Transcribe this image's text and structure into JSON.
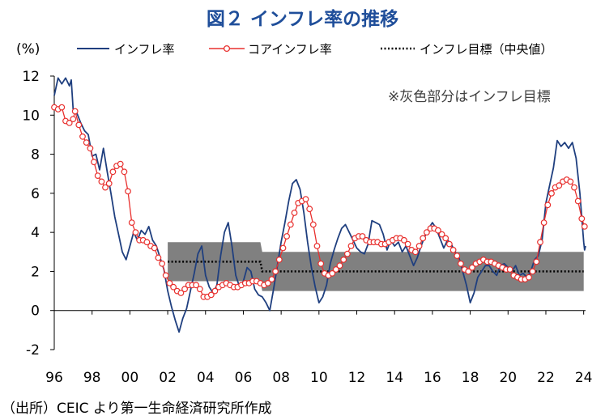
{
  "title": "図２ インフレ率の推移",
  "source": "（出所）CEIC より第一生命経済研究所作成",
  "note": "※灰色部分はインフレ目標",
  "colors": {
    "headline": "#1f3f7f",
    "core": "#e8302e",
    "target": "#000000",
    "band": "#808080",
    "title": "#1f4e9a"
  },
  "chart_data": {
    "type": "line",
    "ylabel": "(%)",
    "ylim": [
      -2,
      12
    ],
    "yticks": [
      -2,
      0,
      2,
      4,
      6,
      8,
      10,
      12
    ],
    "xlim": [
      1996.0,
      2024.1
    ],
    "xticks": [
      1996,
      1998,
      2000,
      2002,
      2004,
      2006,
      2008,
      2010,
      2012,
      2014,
      2016,
      2018,
      2020,
      2022,
      2024
    ],
    "xtick_labels": [
      "96",
      "98",
      "00",
      "02",
      "04",
      "06",
      "08",
      "10",
      "12",
      "14",
      "16",
      "18",
      "20",
      "22",
      "24"
    ],
    "legend": [
      "インフレ率",
      "コアインフレ率",
      "インフレ目標（中央値）"
    ],
    "target_band": [
      {
        "x": 2002.0,
        "low": 1.5,
        "high": 3.5
      },
      {
        "x": 2006.9,
        "low": 1.5,
        "high": 3.5
      },
      {
        "x": 2007.0,
        "low": 1.0,
        "high": 3.0
      },
      {
        "x": 2024.0,
        "low": 1.0,
        "high": 3.0
      }
    ],
    "target_mid": [
      {
        "x": 2002.0,
        "y": 2.5
      },
      {
        "x": 2006.9,
        "y": 2.5
      },
      {
        "x": 2007.0,
        "y": 2.0
      },
      {
        "x": 2024.0,
        "y": 2.0
      }
    ],
    "series": [
      {
        "name": "インフレ率",
        "points": [
          [
            1996.0,
            11.0
          ],
          [
            1996.2,
            11.9
          ],
          [
            1996.4,
            11.6
          ],
          [
            1996.6,
            11.9
          ],
          [
            1996.8,
            11.5
          ],
          [
            1996.9,
            11.8
          ],
          [
            1997.0,
            10.3
          ],
          [
            1997.2,
            10.1
          ],
          [
            1997.4,
            9.6
          ],
          [
            1997.6,
            9.2
          ],
          [
            1997.8,
            9.0
          ],
          [
            1998.0,
            7.9
          ],
          [
            1998.2,
            8.0
          ],
          [
            1998.4,
            7.2
          ],
          [
            1998.6,
            8.3
          ],
          [
            1998.8,
            7.1
          ],
          [
            1999.0,
            6.0
          ],
          [
            1999.2,
            4.8
          ],
          [
            1999.4,
            3.9
          ],
          [
            1999.6,
            3.0
          ],
          [
            1999.8,
            2.6
          ],
          [
            2000.0,
            3.3
          ],
          [
            2000.2,
            4.0
          ],
          [
            2000.4,
            3.6
          ],
          [
            2000.6,
            4.1
          ],
          [
            2000.8,
            3.9
          ],
          [
            2001.0,
            4.3
          ],
          [
            2001.2,
            3.6
          ],
          [
            2001.4,
            3.3
          ],
          [
            2001.6,
            2.7
          ],
          [
            2001.8,
            2.1
          ],
          [
            2002.0,
            1.0
          ],
          [
            2002.2,
            0.2
          ],
          [
            2002.4,
            -0.5
          ],
          [
            2002.6,
            -1.1
          ],
          [
            2002.8,
            -0.4
          ],
          [
            2003.0,
            0.1
          ],
          [
            2003.2,
            1.0
          ],
          [
            2003.4,
            1.9
          ],
          [
            2003.6,
            2.9
          ],
          [
            2003.8,
            3.3
          ],
          [
            2004.0,
            1.8
          ],
          [
            2004.2,
            1.2
          ],
          [
            2004.4,
            0.9
          ],
          [
            2004.6,
            1.3
          ],
          [
            2004.8,
            2.8
          ],
          [
            2005.0,
            4.0
          ],
          [
            2005.2,
            4.5
          ],
          [
            2005.4,
            3.3
          ],
          [
            2005.6,
            1.8
          ],
          [
            2005.8,
            1.2
          ],
          [
            2006.0,
            1.5
          ],
          [
            2006.2,
            2.2
          ],
          [
            2006.4,
            2.0
          ],
          [
            2006.6,
            1.1
          ],
          [
            2006.8,
            0.8
          ],
          [
            2007.0,
            0.7
          ],
          [
            2007.2,
            0.4
          ],
          [
            2007.4,
            0.0
          ],
          [
            2007.6,
            1.1
          ],
          [
            2007.8,
            2.3
          ],
          [
            2008.0,
            3.5
          ],
          [
            2008.2,
            4.5
          ],
          [
            2008.4,
            5.6
          ],
          [
            2008.6,
            6.5
          ],
          [
            2008.8,
            6.7
          ],
          [
            2009.0,
            6.2
          ],
          [
            2009.2,
            5.0
          ],
          [
            2009.4,
            3.5
          ],
          [
            2009.6,
            2.2
          ],
          [
            2009.8,
            1.2
          ],
          [
            2010.0,
            0.4
          ],
          [
            2010.2,
            0.7
          ],
          [
            2010.4,
            1.3
          ],
          [
            2010.6,
            2.4
          ],
          [
            2010.8,
            3.1
          ],
          [
            2011.0,
            3.7
          ],
          [
            2011.2,
            4.2
          ],
          [
            2011.4,
            4.4
          ],
          [
            2011.6,
            4.0
          ],
          [
            2011.8,
            3.6
          ],
          [
            2012.0,
            3.2
          ],
          [
            2012.2,
            3.0
          ],
          [
            2012.4,
            2.9
          ],
          [
            2012.6,
            3.4
          ],
          [
            2012.8,
            4.6
          ],
          [
            2013.0,
            4.5
          ],
          [
            2013.2,
            4.4
          ],
          [
            2013.4,
            3.9
          ],
          [
            2013.6,
            3.1
          ],
          [
            2013.8,
            3.6
          ],
          [
            2014.0,
            3.3
          ],
          [
            2014.2,
            3.5
          ],
          [
            2014.4,
            3.0
          ],
          [
            2014.6,
            3.3
          ],
          [
            2014.8,
            2.8
          ],
          [
            2015.0,
            2.3
          ],
          [
            2015.2,
            2.7
          ],
          [
            2015.4,
            3.3
          ],
          [
            2015.6,
            3.8
          ],
          [
            2015.8,
            4.2
          ],
          [
            2016.0,
            4.5
          ],
          [
            2016.2,
            4.2
          ],
          [
            2016.4,
            3.7
          ],
          [
            2016.6,
            3.2
          ],
          [
            2016.8,
            3.6
          ],
          [
            2017.0,
            3.4
          ],
          [
            2017.2,
            3.0
          ],
          [
            2017.4,
            2.7
          ],
          [
            2017.6,
            2.0
          ],
          [
            2017.8,
            1.3
          ],
          [
            2018.0,
            0.4
          ],
          [
            2018.2,
            0.9
          ],
          [
            2018.4,
            1.7
          ],
          [
            2018.6,
            2.0
          ],
          [
            2018.8,
            2.3
          ],
          [
            2019.0,
            2.3
          ],
          [
            2019.2,
            2.0
          ],
          [
            2019.4,
            1.8
          ],
          [
            2019.6,
            2.3
          ],
          [
            2019.8,
            2.4
          ],
          [
            2020.0,
            2.2
          ],
          [
            2020.2,
            2.0
          ],
          [
            2020.4,
            2.3
          ],
          [
            2020.6,
            1.8
          ],
          [
            2020.8,
            1.9
          ],
          [
            2021.0,
            1.7
          ],
          [
            2021.2,
            2.0
          ],
          [
            2021.4,
            2.6
          ],
          [
            2021.6,
            2.8
          ],
          [
            2021.8,
            3.6
          ],
          [
            2022.0,
            5.5
          ],
          [
            2022.2,
            6.4
          ],
          [
            2022.4,
            7.3
          ],
          [
            2022.6,
            8.7
          ],
          [
            2022.8,
            8.4
          ],
          [
            2023.0,
            8.6
          ],
          [
            2023.2,
            8.3
          ],
          [
            2023.4,
            8.6
          ],
          [
            2023.6,
            7.8
          ],
          [
            2023.8,
            6.0
          ],
          [
            2024.0,
            3.5
          ],
          [
            2024.05,
            3.1
          ],
          [
            2024.1,
            3.3
          ]
        ]
      },
      {
        "name": "コアインフレ率",
        "points": [
          [
            1996.0,
            10.4
          ],
          [
            1996.2,
            10.3
          ],
          [
            1996.4,
            10.4
          ],
          [
            1996.6,
            9.7
          ],
          [
            1996.8,
            9.6
          ],
          [
            1997.0,
            9.8
          ],
          [
            1997.1,
            10.2
          ],
          [
            1997.3,
            9.5
          ],
          [
            1997.5,
            8.9
          ],
          [
            1997.7,
            8.6
          ],
          [
            1997.9,
            8.3
          ],
          [
            1998.1,
            7.6
          ],
          [
            1998.3,
            6.9
          ],
          [
            1998.5,
            6.6
          ],
          [
            1998.7,
            6.3
          ],
          [
            1998.9,
            6.5
          ],
          [
            1999.1,
            7.1
          ],
          [
            1999.3,
            7.4
          ],
          [
            1999.5,
            7.5
          ],
          [
            1999.7,
            7.1
          ],
          [
            1999.9,
            6.1
          ],
          [
            2000.1,
            4.5
          ],
          [
            2000.3,
            4.0
          ],
          [
            2000.5,
            3.6
          ],
          [
            2000.7,
            3.6
          ],
          [
            2000.9,
            3.5
          ],
          [
            2001.1,
            3.3
          ],
          [
            2001.3,
            3.2
          ],
          [
            2001.5,
            2.7
          ],
          [
            2001.7,
            2.4
          ],
          [
            2001.9,
            1.8
          ],
          [
            2002.1,
            1.4
          ],
          [
            2002.3,
            1.2
          ],
          [
            2002.5,
            1.0
          ],
          [
            2002.7,
            0.9
          ],
          [
            2002.9,
            1.1
          ],
          [
            2003.1,
            1.3
          ],
          [
            2003.3,
            1.3
          ],
          [
            2003.5,
            1.3
          ],
          [
            2003.7,
            1.1
          ],
          [
            2003.9,
            0.7
          ],
          [
            2004.1,
            0.7
          ],
          [
            2004.3,
            0.8
          ],
          [
            2004.5,
            1.0
          ],
          [
            2004.7,
            1.2
          ],
          [
            2004.9,
            1.3
          ],
          [
            2005.1,
            1.4
          ],
          [
            2005.3,
            1.3
          ],
          [
            2005.5,
            1.2
          ],
          [
            2005.7,
            1.2
          ],
          [
            2005.9,
            1.3
          ],
          [
            2006.1,
            1.4
          ],
          [
            2006.3,
            1.4
          ],
          [
            2006.5,
            1.5
          ],
          [
            2006.7,
            1.5
          ],
          [
            2006.9,
            1.4
          ],
          [
            2007.1,
            1.3
          ],
          [
            2007.3,
            1.4
          ],
          [
            2007.5,
            1.6
          ],
          [
            2007.7,
            2.0
          ],
          [
            2007.9,
            2.6
          ],
          [
            2008.1,
            3.2
          ],
          [
            2008.3,
            3.8
          ],
          [
            2008.5,
            4.4
          ],
          [
            2008.7,
            5.0
          ],
          [
            2008.9,
            5.5
          ],
          [
            2009.1,
            5.6
          ],
          [
            2009.3,
            5.7
          ],
          [
            2009.5,
            5.2
          ],
          [
            2009.7,
            4.4
          ],
          [
            2009.9,
            3.3
          ],
          [
            2010.1,
            2.4
          ],
          [
            2010.3,
            1.9
          ],
          [
            2010.5,
            1.8
          ],
          [
            2010.7,
            1.9
          ],
          [
            2010.9,
            2.1
          ],
          [
            2011.1,
            2.3
          ],
          [
            2011.3,
            2.6
          ],
          [
            2011.5,
            2.9
          ],
          [
            2011.7,
            3.3
          ],
          [
            2011.9,
            3.7
          ],
          [
            2012.1,
            3.8
          ],
          [
            2012.3,
            3.8
          ],
          [
            2012.5,
            3.6
          ],
          [
            2012.7,
            3.5
          ],
          [
            2012.9,
            3.5
          ],
          [
            2013.1,
            3.5
          ],
          [
            2013.3,
            3.4
          ],
          [
            2013.5,
            3.4
          ],
          [
            2013.7,
            3.5
          ],
          [
            2013.9,
            3.6
          ],
          [
            2014.1,
            3.7
          ],
          [
            2014.3,
            3.7
          ],
          [
            2014.5,
            3.6
          ],
          [
            2014.7,
            3.4
          ],
          [
            2014.9,
            3.1
          ],
          [
            2015.1,
            3.0
          ],
          [
            2015.3,
            3.3
          ],
          [
            2015.5,
            3.7
          ],
          [
            2015.7,
            4.0
          ],
          [
            2015.9,
            4.2
          ],
          [
            2016.1,
            4.2
          ],
          [
            2016.3,
            4.1
          ],
          [
            2016.5,
            3.9
          ],
          [
            2016.7,
            3.7
          ],
          [
            2016.9,
            3.4
          ],
          [
            2017.1,
            3.1
          ],
          [
            2017.3,
            2.8
          ],
          [
            2017.5,
            2.4
          ],
          [
            2017.7,
            2.1
          ],
          [
            2017.9,
            2.0
          ],
          [
            2018.1,
            2.2
          ],
          [
            2018.3,
            2.4
          ],
          [
            2018.5,
            2.5
          ],
          [
            2018.7,
            2.6
          ],
          [
            2018.9,
            2.5
          ],
          [
            2019.1,
            2.5
          ],
          [
            2019.3,
            2.4
          ],
          [
            2019.5,
            2.3
          ],
          [
            2019.7,
            2.2
          ],
          [
            2019.9,
            2.1
          ],
          [
            2020.1,
            2.1
          ],
          [
            2020.3,
            1.8
          ],
          [
            2020.5,
            1.7
          ],
          [
            2020.7,
            1.6
          ],
          [
            2020.9,
            1.6
          ],
          [
            2021.1,
            1.7
          ],
          [
            2021.3,
            2.0
          ],
          [
            2021.5,
            2.5
          ],
          [
            2021.7,
            3.5
          ],
          [
            2021.9,
            4.5
          ],
          [
            2022.1,
            5.4
          ],
          [
            2022.3,
            6.0
          ],
          [
            2022.5,
            6.3
          ],
          [
            2022.7,
            6.4
          ],
          [
            2022.9,
            6.6
          ],
          [
            2023.1,
            6.7
          ],
          [
            2023.3,
            6.6
          ],
          [
            2023.5,
            6.3
          ],
          [
            2023.7,
            5.6
          ],
          [
            2023.9,
            4.7
          ],
          [
            2024.05,
            4.3
          ]
        ]
      }
    ]
  }
}
